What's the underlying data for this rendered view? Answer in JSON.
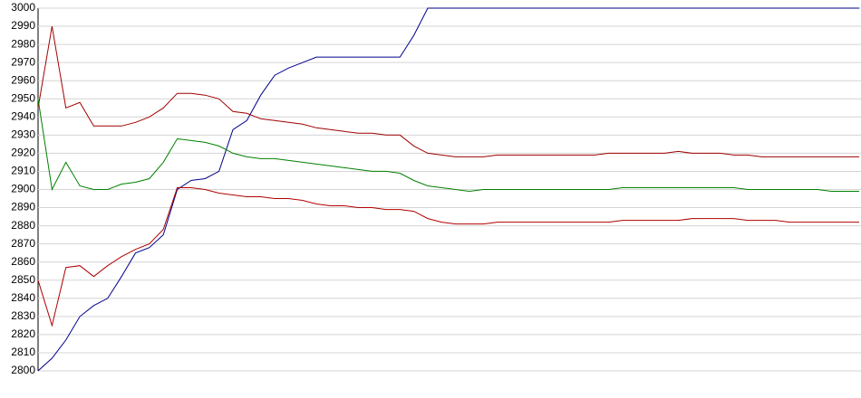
{
  "chart_data": {
    "type": "line",
    "categories": [
      null,
      null,
      null,
      null,
      null,
      null,
      null,
      null,
      null,
      null,
      null,
      null,
      null,
      null,
      null,
      null,
      null,
      null,
      null,
      null,
      null,
      null,
      null,
      null,
      null,
      null,
      null,
      null,
      null,
      null,
      null,
      null,
      null,
      null,
      null,
      null,
      null,
      null,
      null,
      null,
      null,
      null,
      null,
      null,
      null,
      null,
      null,
      null,
      null,
      null,
      null,
      null,
      null,
      null,
      null,
      null,
      null,
      null,
      null,
      null
    ],
    "series": [
      {
        "color": "#00008b",
        "values": [
          2800,
          2807,
          2817,
          2830,
          2836,
          2840,
          2852,
          2865,
          2868,
          2875,
          2900,
          2905,
          2906,
          2910,
          2933,
          2938,
          2952,
          2963,
          2967,
          2970,
          2973,
          2973,
          2973,
          2973,
          2973,
          2973,
          2973,
          2985,
          3000,
          3000,
          3000,
          3000,
          3000,
          3000,
          3000,
          3000,
          3000,
          3000,
          3000,
          3000,
          3000,
          3000,
          3000,
          3000,
          3000,
          3000,
          3000,
          3000,
          3000,
          3000,
          3000,
          3000,
          3000,
          3000,
          3000,
          3000,
          3000,
          3000,
          3000,
          3000
        ]
      },
      {
        "color": "#a00000",
        "values": [
          2945,
          2990,
          2945,
          2948,
          2935,
          2935,
          2935,
          2937,
          2940,
          2945,
          2953,
          2953,
          2952,
          2950,
          2943,
          2942,
          2939,
          2938,
          2937,
          2936,
          2934,
          2933,
          2932,
          2931,
          2931,
          2930,
          2930,
          2924,
          2920,
          2919,
          2918,
          2918,
          2918,
          2919,
          2919,
          2919,
          2919,
          2919,
          2919,
          2919,
          2919,
          2920,
          2920,
          2920,
          2920,
          2920,
          2921,
          2920,
          2920,
          2920,
          2919,
          2919,
          2918,
          2918,
          2918,
          2918,
          2918,
          2918,
          2918,
          2918
        ]
      },
      {
        "color": "#008000",
        "values": [
          2950,
          2900,
          2915,
          2902,
          2900,
          2900,
          2903,
          2904,
          2906,
          2915,
          2928,
          2927,
          2926,
          2924,
          2920,
          2918,
          2917,
          2917,
          2916,
          2915,
          2914,
          2913,
          2912,
          2911,
          2910,
          2910,
          2909,
          2905,
          2902,
          2901,
          2900,
          2899,
          2900,
          2900,
          2900,
          2900,
          2900,
          2900,
          2900,
          2900,
          2900,
          2900,
          2901,
          2901,
          2901,
          2901,
          2901,
          2901,
          2901,
          2901,
          2901,
          2900,
          2900,
          2900,
          2900,
          2900,
          2900,
          2899,
          2899,
          2899
        ]
      },
      {
        "color": "#b00000",
        "values": [
          2850,
          2825,
          2857,
          2858,
          2852,
          2858,
          2863,
          2867,
          2870,
          2878,
          2901,
          2901,
          2900,
          2898,
          2897,
          2896,
          2896,
          2895,
          2895,
          2894,
          2892,
          2891,
          2891,
          2890,
          2890,
          2889,
          2889,
          2888,
          2884,
          2882,
          2881,
          2881,
          2881,
          2882,
          2882,
          2882,
          2882,
          2882,
          2882,
          2882,
          2882,
          2882,
          2883,
          2883,
          2883,
          2883,
          2883,
          2884,
          2884,
          2884,
          2884,
          2883,
          2883,
          2883,
          2882,
          2882,
          2882,
          2882,
          2882,
          2882
        ]
      }
    ],
    "ylim": [
      2800,
      3000
    ],
    "yticks": [
      2800,
      2810,
      2820,
      2830,
      2840,
      2850,
      2860,
      2870,
      2880,
      2890,
      2900,
      2910,
      2920,
      2930,
      2940,
      2950,
      2960,
      2970,
      2980,
      2990,
      3000
    ],
    "grid": true
  }
}
